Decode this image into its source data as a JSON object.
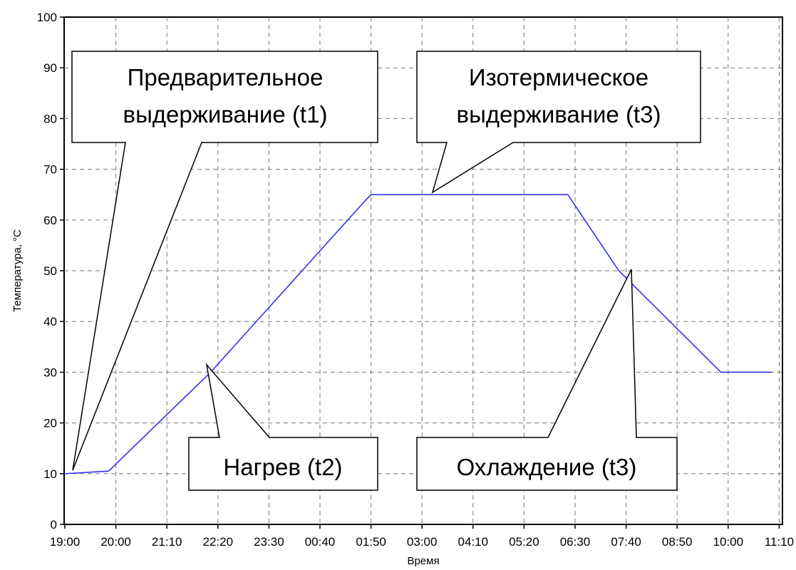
{
  "chart_data": {
    "type": "line",
    "title": "",
    "xlabel": "Время",
    "ylabel": "Температура, °C",
    "x_ticks": [
      "19:00",
      "20:00",
      "21:10",
      "22:20",
      "23:30",
      "00:40",
      "01:50",
      "03:00",
      "04:10",
      "05:20",
      "06:30",
      "07:40",
      "08:50",
      "10:00",
      "11:10"
    ],
    "ylim": [
      0,
      100
    ],
    "y_ticks": [
      0,
      10,
      20,
      30,
      40,
      50,
      60,
      70,
      80,
      90,
      100
    ],
    "grid": true,
    "line_color": "#3333ee",
    "series": [
      {
        "x": [
          "19:00",
          "20:00",
          "22:20",
          "01:50",
          "02:00",
          "06:30",
          "07:40",
          "10:00",
          "11:10"
        ],
        "values": [
          10,
          10.5,
          30,
          63.5,
          65,
          65,
          50,
          30,
          30
        ]
      }
    ],
    "annotations": [
      {
        "id": "t1",
        "lines": [
          "Предварительное",
          "выдерживание (t1)"
        ]
      },
      {
        "id": "t2",
        "lines": [
          "Нагрев (t2)"
        ]
      },
      {
        "id": "t3a",
        "lines": [
          "Изотермическое",
          "выдерживание (t3)"
        ]
      },
      {
        "id": "t3b",
        "lines": [
          "Охлаждение (t3)"
        ]
      }
    ]
  }
}
